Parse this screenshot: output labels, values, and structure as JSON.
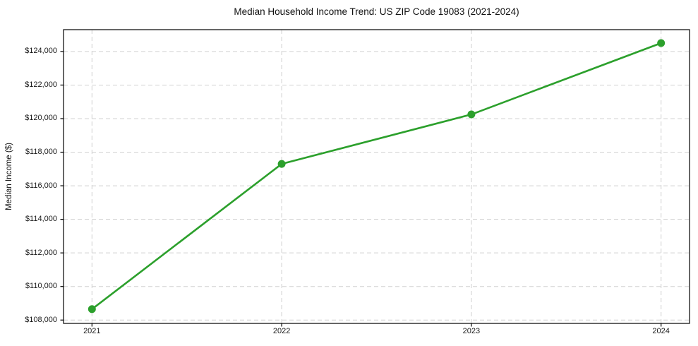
{
  "chart_data": {
    "type": "line",
    "title": "Median Household Income Trend: US ZIP Code 19083 (2021-2024)",
    "xlabel": "",
    "ylabel": "Median Income ($)",
    "x": [
      2021,
      2022,
      2023,
      2024
    ],
    "x_tick_labels": [
      "2021",
      "2022",
      "2023",
      "2024"
    ],
    "series": [
      {
        "values": [
          108650,
          117300,
          120250,
          124500
        ],
        "color": "#2ca02c",
        "marker": "circle"
      }
    ],
    "y_ticks": [
      108000,
      110000,
      112000,
      114000,
      116000,
      118000,
      120000,
      122000,
      124000
    ],
    "y_tick_labels": [
      "$108,000",
      "$110,000",
      "$112,000",
      "$114,000",
      "$116,000",
      "$118,000",
      "$120,000",
      "$122,000",
      "$124,000"
    ],
    "xlim": [
      2020.85,
      2024.15
    ],
    "ylim": [
      107800,
      125300
    ],
    "grid": true,
    "grid_style": "dashed",
    "legend": "none",
    "background": "#ffffff"
  }
}
